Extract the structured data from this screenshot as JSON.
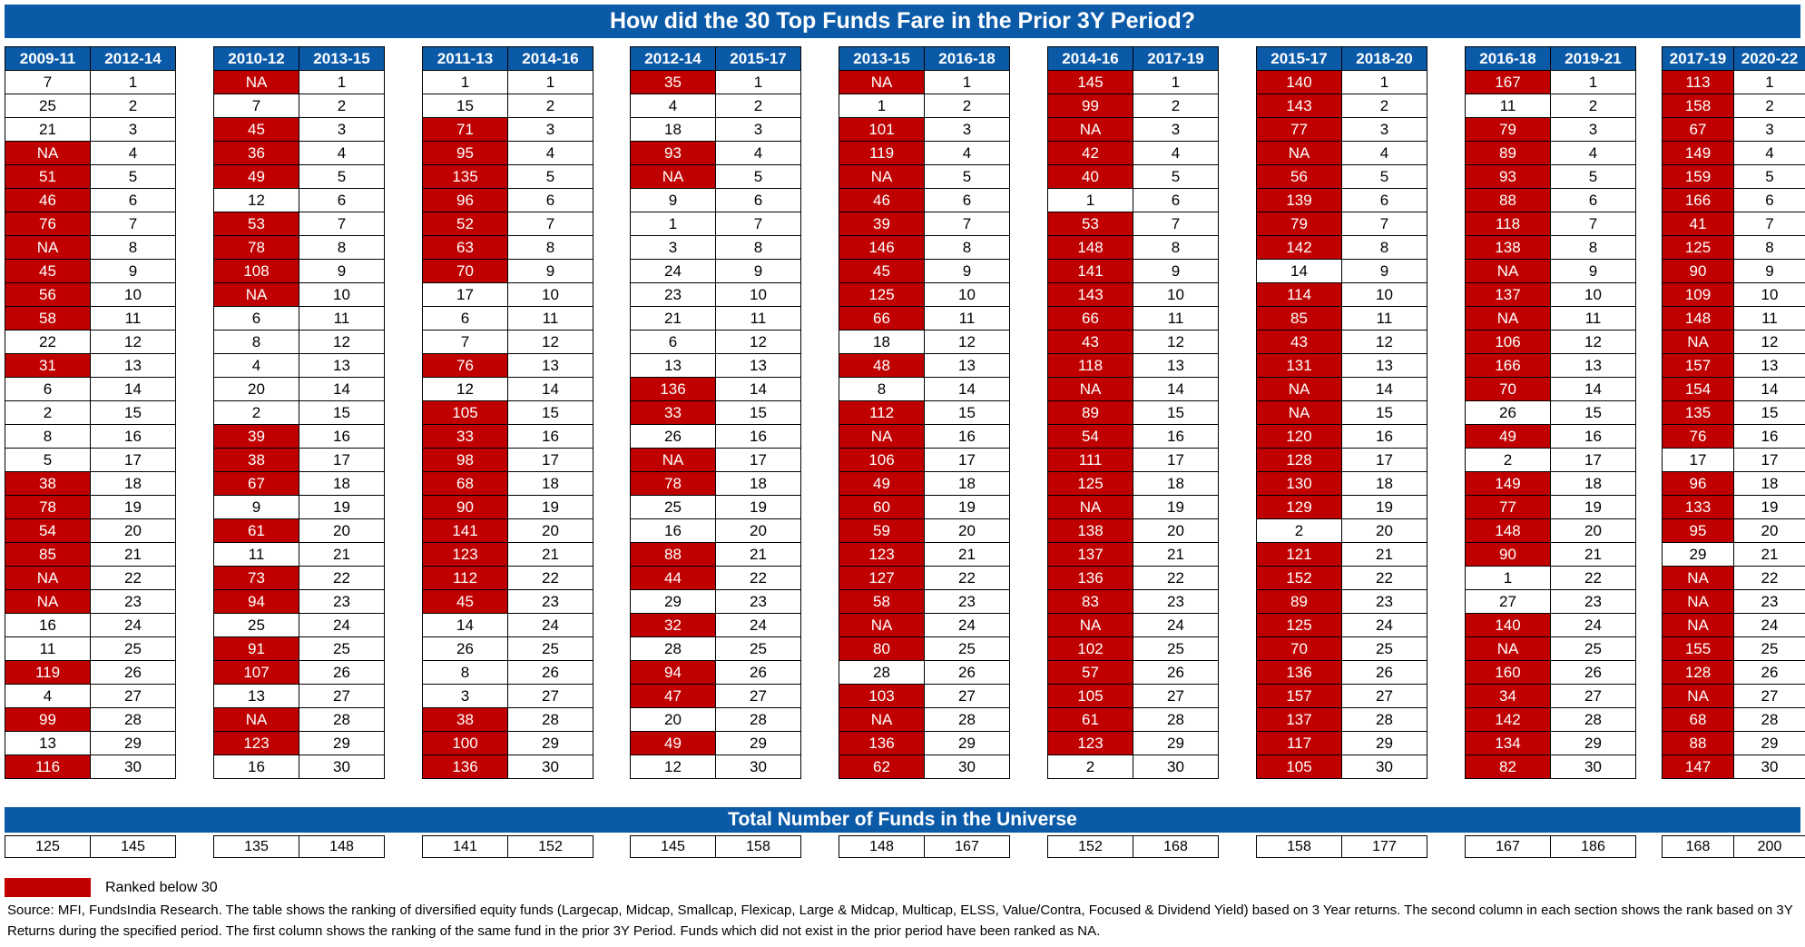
{
  "title": "How did the 30 Top Funds Fare in the Prior 3Y Period?",
  "total_title": "Total Number of Funds in the Universe",
  "legend_label": "Ranked below 30",
  "source": "Source:  MFI, FundsIndia Research. The table shows the ranking of diversified equity funds (Largecap, Midcap, Smallcap, Flexicap, Large & Midcap, Multicap, ELSS, Value/Contra, Focused & Dividend Yield) based on 3 Year returns. The second column in each section shows the rank based on 3Y Returns during the specified period. The first column shows the ranking of the same fund in the prior 3Y Period. Funds which did not exist in the prior period have been ranked as NA.",
  "colors": {
    "header_blue": "#0b5aa8",
    "below_30_red": "#c00000"
  },
  "groups": [
    {
      "prior": "2009-11",
      "current": "2012-14",
      "prior_ranks": [
        "7",
        "25",
        "21",
        "NA",
        "51",
        "46",
        "76",
        "NA",
        "45",
        "56",
        "58",
        "22",
        "31",
        "6",
        "2",
        "8",
        "5",
        "38",
        "78",
        "54",
        "85",
        "NA",
        "NA",
        "16",
        "11",
        "119",
        "4",
        "99",
        "13",
        "116"
      ],
      "totals": [
        "125",
        "145"
      ]
    },
    {
      "prior": "2010-12",
      "current": "2013-15",
      "prior_ranks": [
        "NA",
        "7",
        "45",
        "36",
        "49",
        "12",
        "53",
        "78",
        "108",
        "NA",
        "6",
        "8",
        "4",
        "20",
        "2",
        "39",
        "38",
        "67",
        "9",
        "61",
        "11",
        "73",
        "94",
        "25",
        "91",
        "107",
        "13",
        "NA",
        "123",
        "16"
      ],
      "totals": [
        "135",
        "148"
      ]
    },
    {
      "prior": "2011-13",
      "current": "2014-16",
      "prior_ranks": [
        "1",
        "15",
        "71",
        "95",
        "135",
        "96",
        "52",
        "63",
        "70",
        "17",
        "6",
        "7",
        "76",
        "12",
        "105",
        "33",
        "98",
        "68",
        "90",
        "141",
        "123",
        "112",
        "45",
        "14",
        "26",
        "8",
        "3",
        "38",
        "100",
        "136"
      ],
      "totals": [
        "141",
        "152"
      ]
    },
    {
      "prior": "2012-14",
      "current": "2015-17",
      "prior_ranks": [
        "35",
        "4",
        "18",
        "93",
        "NA",
        "9",
        "1",
        "3",
        "24",
        "23",
        "21",
        "6",
        "13",
        "136",
        "33",
        "26",
        "NA",
        "78",
        "25",
        "16",
        "88",
        "44",
        "29",
        "32",
        "28",
        "94",
        "47",
        "20",
        "49",
        "12"
      ],
      "totals": [
        "145",
        "158"
      ]
    },
    {
      "prior": "2013-15",
      "current": "2016-18",
      "prior_ranks": [
        "NA",
        "1",
        "101",
        "119",
        "NA",
        "46",
        "39",
        "146",
        "45",
        "125",
        "66",
        "18",
        "48",
        "8",
        "112",
        "NA",
        "106",
        "49",
        "60",
        "59",
        "123",
        "127",
        "58",
        "NA",
        "80",
        "28",
        "103",
        "NA",
        "136",
        "62"
      ],
      "totals": [
        "148",
        "167"
      ]
    },
    {
      "prior": "2014-16",
      "current": "2017-19",
      "prior_ranks": [
        "145",
        "99",
        "NA",
        "42",
        "40",
        "1",
        "53",
        "148",
        "141",
        "143",
        "66",
        "43",
        "118",
        "NA",
        "89",
        "54",
        "111",
        "125",
        "NA",
        "138",
        "137",
        "136",
        "83",
        "NA",
        "102",
        "57",
        "105",
        "61",
        "123",
        "2"
      ],
      "totals": [
        "152",
        "168"
      ]
    },
    {
      "prior": "2015-17",
      "current": "2018-20",
      "prior_ranks": [
        "140",
        "143",
        "77",
        "NA",
        "56",
        "139",
        "79",
        "142",
        "14",
        "114",
        "85",
        "43",
        "131",
        "NA",
        "NA",
        "120",
        "128",
        "130",
        "129",
        "2",
        "121",
        "152",
        "89",
        "125",
        "70",
        "136",
        "157",
        "137",
        "117",
        "105"
      ],
      "totals": [
        "158",
        "177"
      ]
    },
    {
      "prior": "2016-18",
      "current": "2019-21",
      "prior_ranks": [
        "167",
        "11",
        "79",
        "89",
        "93",
        "88",
        "118",
        "138",
        "NA",
        "137",
        "NA",
        "106",
        "166",
        "70",
        "26",
        "49",
        "2",
        "149",
        "77",
        "148",
        "90",
        "1",
        "27",
        "140",
        "NA",
        "160",
        "34",
        "142",
        "134",
        "82"
      ],
      "totals": [
        "167",
        "186"
      ]
    },
    {
      "prior": "2017-19",
      "current": "2020-22",
      "prior_ranks": [
        "113",
        "158",
        "67",
        "149",
        "159",
        "166",
        "41",
        "125",
        "90",
        "109",
        "148",
        "NA",
        "157",
        "154",
        "135",
        "76",
        "17",
        "96",
        "133",
        "95",
        "29",
        "NA",
        "NA",
        "NA",
        "155",
        "128",
        "NA",
        "68",
        "88",
        "147"
      ],
      "totals": [
        "168",
        "200"
      ]
    }
  ]
}
